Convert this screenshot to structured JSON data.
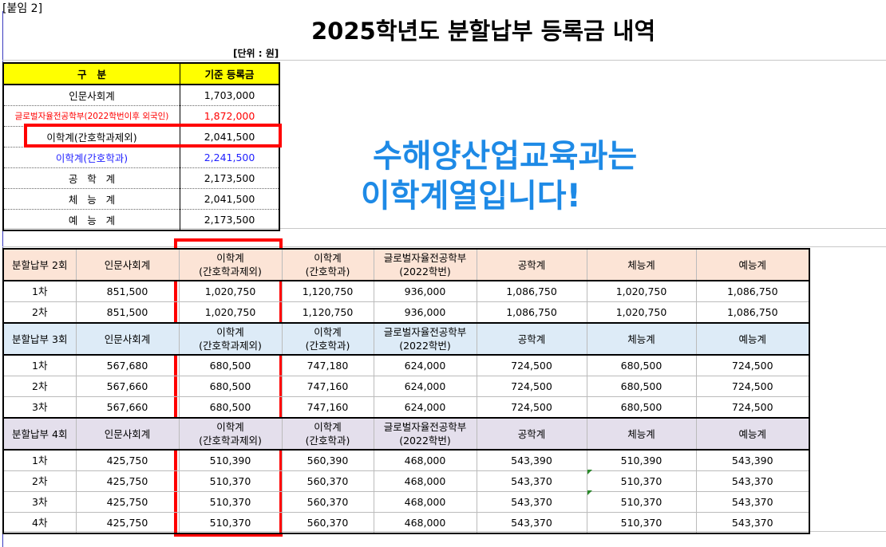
{
  "attachment_label": "[붙임 2]",
  "title": "2025학년도 분할납부 등록금 내역",
  "unit_note": "[단위 : 원]",
  "summary_table": {
    "headers": [
      "구   분",
      "기준 등록금"
    ],
    "rows": [
      {
        "label": "인문사회계",
        "value": "1,703,000",
        "style": "normal"
      },
      {
        "label": "글로벌자율전공학부(2022학번이후 외국인)",
        "value": "1,872,000",
        "style": "red"
      },
      {
        "label": "이학계(간호학과제외)",
        "value": "2,041,500",
        "style": "normal"
      },
      {
        "label": "이학계(간호학과)",
        "value": "2,241,500",
        "style": "blue"
      },
      {
        "label": "공   학   계",
        "value": "2,173,500",
        "style": "normal"
      },
      {
        "label": "체   능   계",
        "value": "2,041,500",
        "style": "normal"
      },
      {
        "label": "예   능   계",
        "value": "2,173,500",
        "style": "normal"
      }
    ]
  },
  "notice": {
    "line1": "수해양산업교육과는",
    "line2": "이학계열입니다!",
    "color": "#1e8ae6"
  },
  "installment_table": {
    "sections": [
      {
        "name": "분할납부 2회",
        "bg": "#fce4d6",
        "columns": [
          "인문사회계",
          "이학계\n(간호학과제외)",
          "이학계\n(간호학과)",
          "글로벌자율전공학부\n(2022학번)",
          "공학계",
          "체능계",
          "예능계"
        ],
        "rows": [
          [
            "1차",
            "851,500",
            "1,020,750",
            "1,120,750",
            "936,000",
            "1,086,750",
            "1,020,750",
            "1,086,750"
          ],
          [
            "2차",
            "851,500",
            "1,020,750",
            "1,120,750",
            "936,000",
            "1,086,750",
            "1,020,750",
            "1,086,750"
          ]
        ]
      },
      {
        "name": "분할납부 3회",
        "bg": "#ddebf7",
        "columns": [
          "인문사회계",
          "이학계\n(간호학과제외)",
          "이학계\n(간호학과)",
          "글로벌자율전공학부\n(2022학번)",
          "공학계",
          "체능계",
          "예능계"
        ],
        "rows": [
          [
            "1차",
            "567,680",
            "680,500",
            "747,180",
            "624,000",
            "724,500",
            "680,500",
            "724,500"
          ],
          [
            "2차",
            "567,660",
            "680,500",
            "747,160",
            "624,000",
            "724,500",
            "680,500",
            "724,500"
          ],
          [
            "3차",
            "567,660",
            "680,500",
            "747,160",
            "624,000",
            "724,500",
            "680,500",
            "724,500"
          ]
        ]
      },
      {
        "name": "분할납부 4회",
        "bg": "#e4dfec",
        "columns": [
          "인문사회계",
          "이학계\n(간호학과제외)",
          "이학계\n(간호학과)",
          "글로벌자율전공학부\n(2022학번)",
          "공학계",
          "체능계",
          "예능계"
        ],
        "rows": [
          [
            "1차",
            "425,750",
            "510,390",
            "560,390",
            "468,000",
            "543,390",
            "510,390",
            "543,390"
          ],
          [
            "2차",
            "425,750",
            "510,370",
            "560,370",
            "468,000",
            "543,370",
            "510,370",
            "543,370"
          ],
          [
            "3차",
            "425,750",
            "510,370",
            "560,370",
            "468,000",
            "543,370",
            "510,370",
            "543,370"
          ],
          [
            "4차",
            "425,750",
            "510,370",
            "560,370",
            "468,000",
            "543,370",
            "510,370",
            "543,370"
          ]
        ]
      }
    ]
  }
}
